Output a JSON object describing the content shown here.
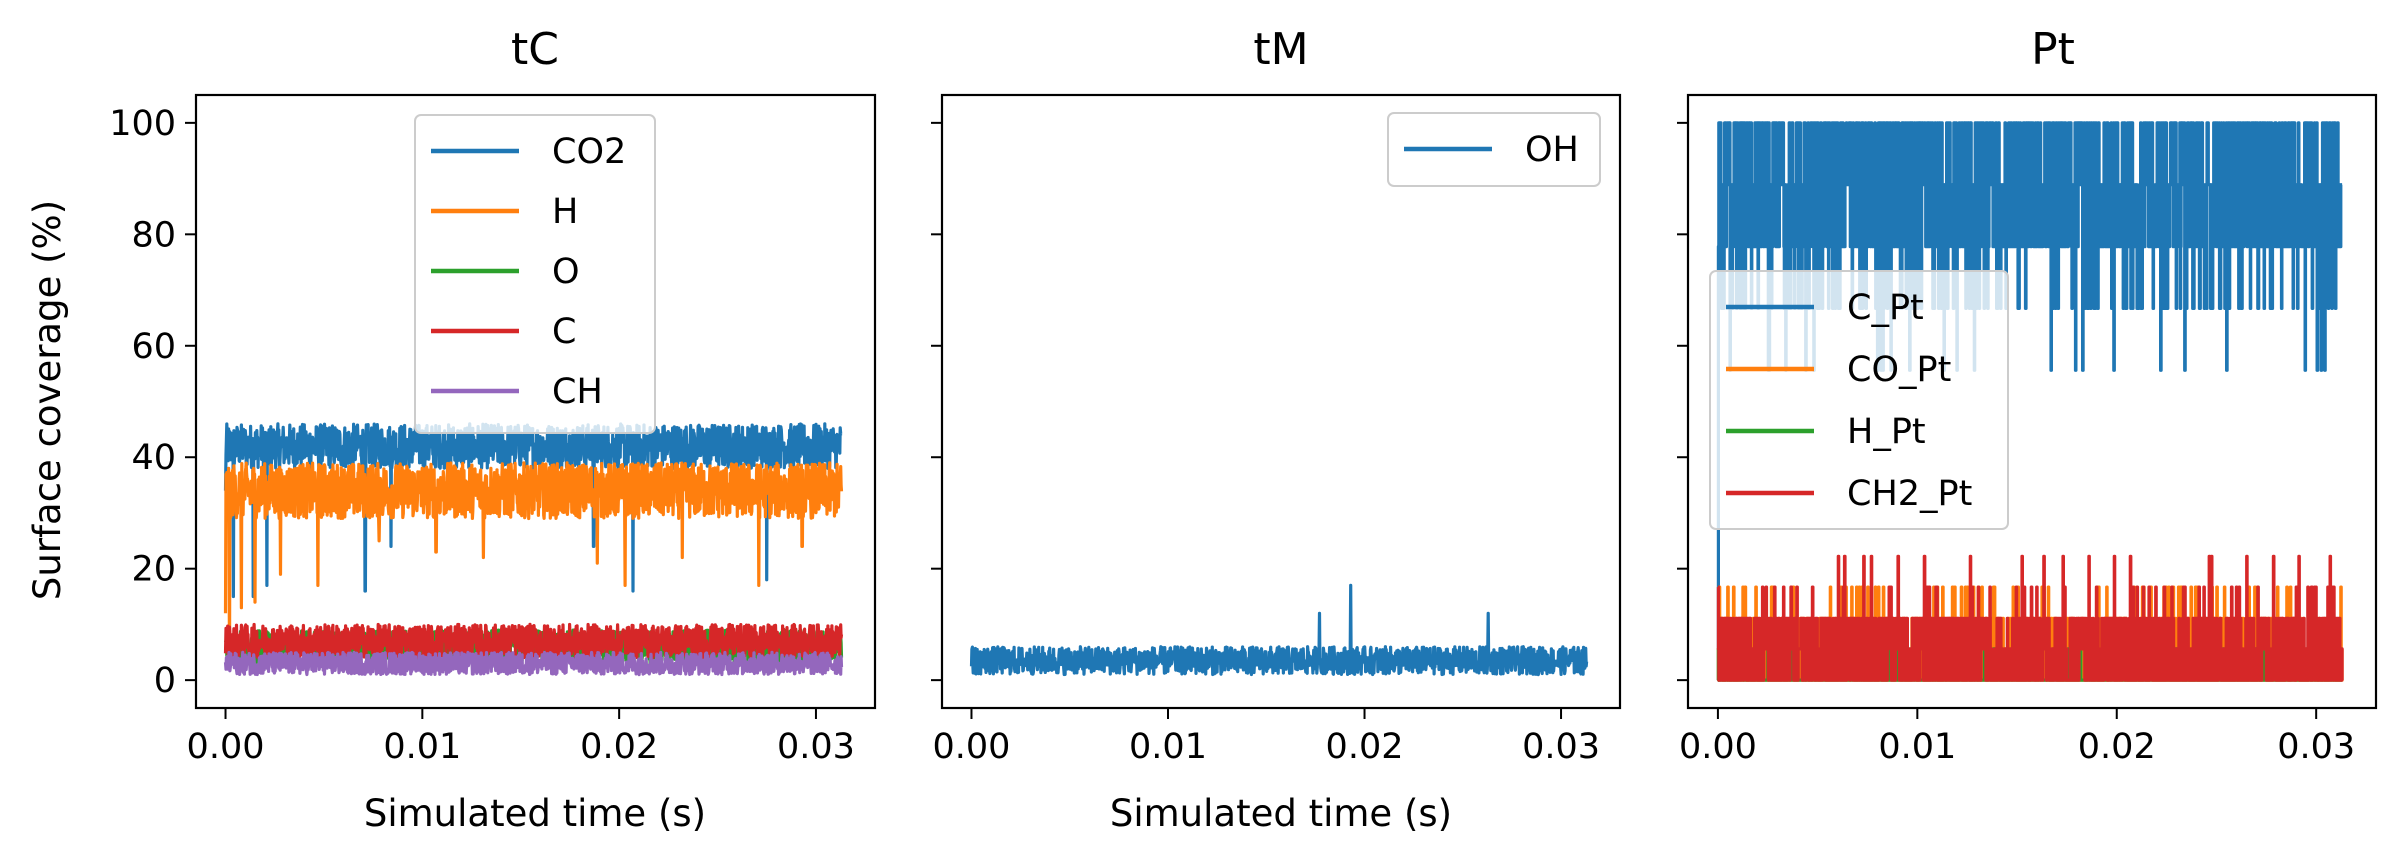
{
  "figure": {
    "ylabel": "Surface coverage (%)",
    "xlabel": "Simulated time (s)"
  },
  "chart_data": [
    {
      "type": "line",
      "title": "tC",
      "xlabel": "Simulated time (s)",
      "ylabel": "Surface coverage (%)",
      "xlim": [
        -0.0015,
        0.033
      ],
      "ylim": [
        -5,
        105
      ],
      "xticks": [
        "0.00",
        "0.01",
        "0.02",
        "0.03"
      ],
      "yticks": [
        "0",
        "20",
        "40",
        "60",
        "80",
        "100"
      ],
      "legend_position": "upper center",
      "series": [
        {
          "name": "CO2",
          "color": "#1f77b4",
          "base": 42,
          "noise": 4,
          "min": 38,
          "max": 49,
          "dips": [
            [
              0.0004,
              15
            ],
            [
              0.0014,
              15
            ],
            [
              0.0021,
              17
            ],
            [
              0.0071,
              16
            ],
            [
              0.0084,
              24
            ],
            [
              0.0187,
              24
            ],
            [
              0.0207,
              16
            ],
            [
              0.0275,
              18
            ]
          ]
        },
        {
          "name": "H",
          "color": "#ff7f0e",
          "base": 34,
          "noise": 5,
          "min": 22,
          "max": 45,
          "dips": [
            [
              0.0002,
              2
            ],
            [
              0.0008,
              13
            ],
            [
              0.0015,
              14
            ],
            [
              0.0028,
              19
            ],
            [
              0.0047,
              17
            ],
            [
              0.0078,
              25
            ],
            [
              0.0107,
              23
            ],
            [
              0.0131,
              22
            ],
            [
              0.0189,
              21
            ],
            [
              0.0203,
              17
            ],
            [
              0.0232,
              22
            ],
            [
              0.0271,
              17
            ],
            [
              0.0293,
              24
            ]
          ]
        },
        {
          "name": "O",
          "color": "#2ca02c",
          "base": 6,
          "noise": 3,
          "min": 0,
          "max": 13,
          "dips": []
        },
        {
          "name": "C",
          "color": "#d62728",
          "base": 7,
          "noise": 3,
          "min": 2,
          "max": 18,
          "dips": []
        },
        {
          "name": "CH",
          "color": "#9467bd",
          "base": 3,
          "noise": 2,
          "min": 0,
          "max": 9,
          "dips": []
        }
      ]
    },
    {
      "type": "line",
      "title": "tM",
      "xlabel": "Simulated time (s)",
      "ylabel": "",
      "xlim": [
        -0.0015,
        0.033
      ],
      "ylim": [
        -5,
        105
      ],
      "xticks": [
        "0.00",
        "0.01",
        "0.02",
        "0.03"
      ],
      "yticks": [],
      "legend_position": "upper right",
      "series": [
        {
          "name": "OH",
          "color": "#1f77b4",
          "base": 3.5,
          "noise": 2.5,
          "min": 0,
          "max": 10,
          "peaks": [
            [
              0.0193,
              17
            ],
            [
              0.0177,
              12
            ],
            [
              0.0263,
              12
            ]
          ]
        }
      ]
    },
    {
      "type": "line",
      "title": "Pt",
      "xlabel": "",
      "ylabel": "",
      "xlim": [
        -0.0015,
        0.033
      ],
      "ylim": [
        -5,
        105
      ],
      "xticks": [
        "0.00",
        "0.01",
        "0.02",
        "0.03"
      ],
      "yticks": [],
      "legend_position": "center left",
      "series": [
        {
          "name": "C_Pt",
          "color": "#1f77b4",
          "levels": [
            100,
            88.9,
            77.8,
            66.7,
            55.6
          ],
          "weights": [
            0.3,
            0.3,
            0.28,
            0.1,
            0.02
          ]
        },
        {
          "name": "CO_Pt",
          "color": "#ff7f0e",
          "levels": [
            0,
            5.6,
            11.1,
            16.7
          ],
          "weights": [
            0.55,
            0.2,
            0.2,
            0.05
          ]
        },
        {
          "name": "H_Pt",
          "color": "#2ca02c",
          "levels": [
            0,
            5.6
          ],
          "weights": [
            0.9,
            0.1
          ]
        },
        {
          "name": "CH2_Pt",
          "color": "#d62728",
          "levels": [
            0,
            5.6,
            11.1,
            16.7,
            22.2
          ],
          "weights": [
            0.45,
            0.25,
            0.25,
            0.04,
            0.01
          ]
        }
      ]
    }
  ]
}
